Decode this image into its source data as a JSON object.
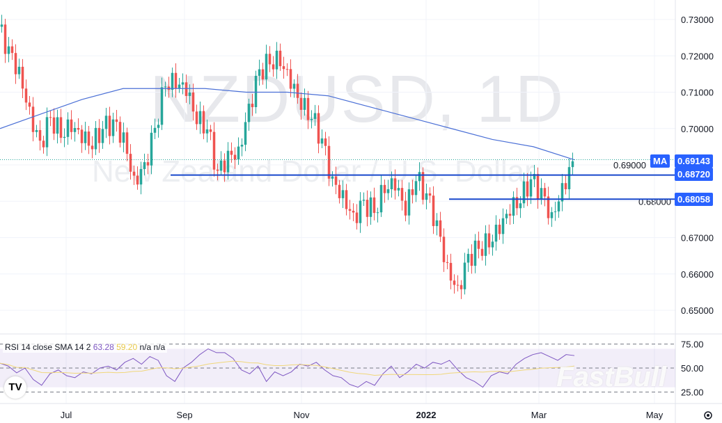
{
  "chart_data": {
    "type": "candlestick",
    "symbol": "NZDUSD",
    "interval": "1D",
    "watermark_title": "NZDUSD, 1D",
    "watermark_subtitle": "New Zealand Dollar / U.S. Dollar",
    "y_ticks": [
      "0.73000",
      "0.72000",
      "0.71000",
      "0.70000",
      "0.69000",
      "0.68000",
      "0.67000",
      "0.66000",
      "0.65000"
    ],
    "ylim": [
      0.645,
      0.733
    ],
    "x_ticks": [
      "Jul",
      "Sep",
      "Nov",
      "2022",
      "Mar",
      "May"
    ],
    "closes": [
      0.728,
      0.722,
      0.716,
      0.705,
      0.696,
      0.703,
      0.698,
      0.7,
      0.697,
      0.695,
      0.7,
      0.702,
      0.698,
      0.686,
      0.69,
      0.7,
      0.712,
      0.712,
      0.71,
      0.702,
      0.7,
      0.688,
      0.693,
      0.694,
      0.706,
      0.716,
      0.718,
      0.718,
      0.712,
      0.706,
      0.703,
      0.697,
      0.686,
      0.682,
      0.676,
      0.68,
      0.677,
      0.683,
      0.684,
      0.677,
      0.686,
      0.682,
      0.674,
      0.662,
      0.656,
      0.665,
      0.667,
      0.668,
      0.672,
      0.677,
      0.68,
      0.686,
      0.683,
      0.676,
      0.684,
      0.691
    ],
    "ma": [
      0.7,
      0.704,
      0.708,
      0.711,
      0.711,
      0.711,
      0.71,
      0.71,
      0.709,
      0.706,
      0.703,
      0.7,
      0.697,
      0.695,
      0.6914
    ],
    "ma_value": "0.69143",
    "ma_label": "MA",
    "levels": [
      {
        "value": "0.68720"
      },
      {
        "value": "0.68058"
      }
    ],
    "rsi": {
      "legend": "RSI 14 close SMA 14 2",
      "rsi_value": "63.28",
      "sma_value": "59.20",
      "extra1": "n/a",
      "extra2": "n/a",
      "ticks": [
        "75.00",
        "50.00",
        "25.00"
      ],
      "values": [
        55,
        52,
        45,
        50,
        38,
        32,
        44,
        48,
        42,
        40,
        46,
        44,
        50,
        52,
        48,
        56,
        60,
        54,
        62,
        58,
        42,
        36,
        50,
        56,
        64,
        70,
        66,
        66,
        60,
        48,
        44,
        52,
        36,
        46,
        42,
        46,
        54,
        52,
        56,
        48,
        42,
        40,
        33,
        30,
        36,
        32,
        44,
        52,
        40,
        46,
        54,
        50,
        56,
        54,
        58,
        48,
        40,
        36,
        30,
        42,
        46,
        44,
        54,
        60,
        64,
        66,
        62,
        58,
        64,
        63
      ],
      "colors": {
        "rsi": "#7e57c2",
        "sma": "#f0d77a"
      }
    },
    "colors": {
      "up": "#26a69a",
      "down": "#ef5350",
      "ma": "#4a6fd6",
      "level": "#1848cc",
      "tag": "#2962ff"
    }
  },
  "brand": "FastBull",
  "logo": "TV"
}
